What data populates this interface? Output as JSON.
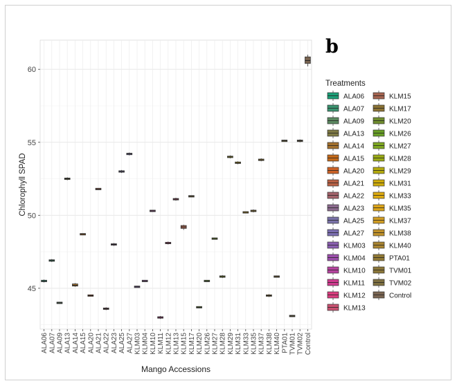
{
  "panel_label": "b",
  "chart_data": {
    "type": "box",
    "title": "",
    "xlabel": "Mango Accessions",
    "ylabel": "Chlorophyll SPAD",
    "ylim": [
      42.2,
      62.0
    ],
    "yticks": [
      45,
      50,
      55,
      60
    ],
    "grid": true,
    "legend_title": "Treatments",
    "legend_position": "right",
    "categories": [
      "ALA06",
      "ALA07",
      "ALA09",
      "ALA13",
      "ALA14",
      "ALA15",
      "ALA20",
      "ALA21",
      "ALA22",
      "ALA23",
      "ALA25",
      "ALA27",
      "KLM03",
      "KLM04",
      "KLM10",
      "KLM11",
      "KLM12",
      "KLM13",
      "KLM15",
      "KLM17",
      "KLM20",
      "KLM26",
      "KLM27",
      "KLM28",
      "KLM29",
      "KLM31",
      "KLM33",
      "KLM35",
      "KLM37",
      "KLM38",
      "KLM40",
      "PTA01",
      "TVM01",
      "TVM02",
      "Control"
    ],
    "values": [
      45.5,
      46.9,
      44.0,
      52.5,
      45.2,
      48.7,
      44.5,
      51.8,
      43.6,
      48.0,
      53.0,
      54.2,
      45.1,
      45.5,
      50.3,
      43.0,
      48.1,
      51.1,
      49.2,
      51.3,
      43.7,
      45.5,
      48.4,
      45.8,
      54.0,
      53.6,
      50.2,
      50.3,
      53.8,
      44.5,
      45.8,
      55.1,
      43.1,
      55.1,
      60.6
    ],
    "box_ranges": [
      [
        45.45,
        45.55
      ],
      [
        46.85,
        46.95
      ],
      [
        43.98,
        44.02
      ],
      [
        52.45,
        52.55
      ],
      [
        45.15,
        45.3
      ],
      [
        48.68,
        48.72
      ],
      [
        44.48,
        44.52
      ],
      [
        51.78,
        51.82
      ],
      [
        43.55,
        43.65
      ],
      [
        47.95,
        48.05
      ],
      [
        52.95,
        53.05
      ],
      [
        54.15,
        54.25
      ],
      [
        45.08,
        45.12
      ],
      [
        45.48,
        45.52
      ],
      [
        50.28,
        50.32
      ],
      [
        42.95,
        43.05
      ],
      [
        48.05,
        48.15
      ],
      [
        51.05,
        51.15
      ],
      [
        49.1,
        49.3
      ],
      [
        51.28,
        51.32
      ],
      [
        43.68,
        43.72
      ],
      [
        45.48,
        45.52
      ],
      [
        48.38,
        48.42
      ],
      [
        45.75,
        45.85
      ],
      [
        53.95,
        54.05
      ],
      [
        53.55,
        53.65
      ],
      [
        50.18,
        50.22
      ],
      [
        50.25,
        50.35
      ],
      [
        53.75,
        53.85
      ],
      [
        44.45,
        44.55
      ],
      [
        45.78,
        45.82
      ],
      [
        55.08,
        55.12
      ],
      [
        43.08,
        43.12
      ],
      [
        55.05,
        55.15
      ],
      [
        60.4,
        60.85
      ]
    ],
    "whiskers": [
      [
        45.4,
        45.6
      ],
      [
        46.8,
        47.0
      ],
      [
        43.95,
        44.05
      ],
      [
        52.4,
        52.6
      ],
      [
        45.1,
        45.35
      ],
      [
        48.65,
        48.75
      ],
      [
        44.45,
        44.55
      ],
      [
        51.75,
        51.85
      ],
      [
        43.5,
        43.7
      ],
      [
        47.9,
        48.1
      ],
      [
        52.9,
        53.1
      ],
      [
        54.1,
        54.3
      ],
      [
        45.05,
        45.15
      ],
      [
        45.45,
        45.55
      ],
      [
        50.25,
        50.35
      ],
      [
        42.9,
        43.1
      ],
      [
        48.0,
        48.2
      ],
      [
        51.0,
        51.2
      ],
      [
        49.0,
        49.35
      ],
      [
        51.25,
        51.35
      ],
      [
        43.65,
        43.75
      ],
      [
        45.45,
        45.55
      ],
      [
        48.35,
        48.45
      ],
      [
        45.7,
        45.9
      ],
      [
        53.9,
        54.1
      ],
      [
        53.5,
        53.7
      ],
      [
        50.15,
        50.25
      ],
      [
        50.2,
        50.4
      ],
      [
        53.7,
        53.9
      ],
      [
        44.4,
        44.6
      ],
      [
        45.75,
        45.85
      ],
      [
        55.05,
        55.15
      ],
      [
        43.05,
        43.15
      ],
      [
        55.0,
        55.2
      ],
      [
        60.2,
        61.0
      ]
    ],
    "colors": [
      "#1b9e77",
      "#3a9370",
      "#5b8860",
      "#7f7a45",
      "#a3712e",
      "#c46a1a",
      "#cc6227",
      "#b86145",
      "#a3636b",
      "#8c6b8e",
      "#7a72a8",
      "#7b6eb0",
      "#8a5fb0",
      "#9c4fac",
      "#b5449f",
      "#cf3b8f",
      "#da3d7f",
      "#c95171",
      "#a56450",
      "#8c7335",
      "#6f8d2e",
      "#689f26",
      "#7fa821",
      "#9aab16",
      "#b5ab0d",
      "#ceab0a",
      "#deab10",
      "#dca51a",
      "#d19d22",
      "#c0912b",
      "#a98531",
      "#917a35",
      "#8b7739",
      "#7f7142",
      "#7a6552"
    ]
  }
}
